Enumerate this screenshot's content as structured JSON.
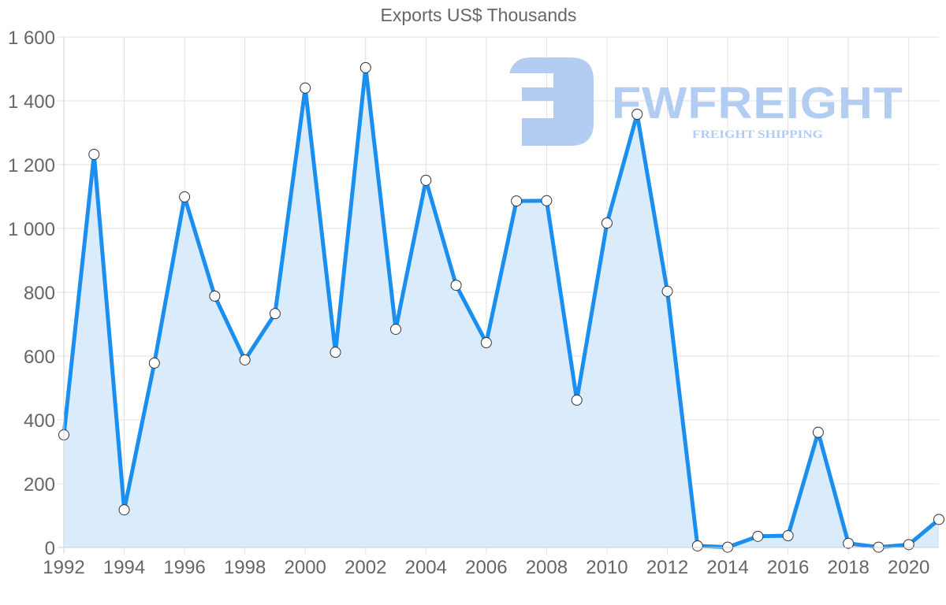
{
  "chart_data": {
    "type": "area",
    "title": "Exports US$ Thousands",
    "xlabel": "",
    "ylabel": "",
    "x": [
      1992,
      1993,
      1994,
      1995,
      1996,
      1997,
      1998,
      1999,
      2000,
      2001,
      2002,
      2003,
      2004,
      2005,
      2006,
      2007,
      2008,
      2009,
      2010,
      2011,
      2012,
      2013,
      2014,
      2015,
      2016,
      2017,
      2018,
      2019,
      2020,
      2021
    ],
    "series": [
      {
        "name": "Exports US$ Thousands",
        "values": [
          353,
          1232,
          118,
          578,
          1099,
          788,
          588,
          733,
          1440,
          612,
          1504,
          684,
          1151,
          822,
          642,
          1086,
          1087,
          462,
          1017,
          1358,
          803,
          5,
          1,
          35,
          37,
          361,
          13,
          1,
          9,
          88
        ]
      }
    ],
    "ylim": [
      0,
      1600
    ],
    "xlim": [
      1992,
      2021
    ],
    "y_ticks": [
      "0",
      "200",
      "400",
      "600",
      "800",
      "1 000",
      "1 200",
      "1 400",
      "1 600"
    ],
    "y_tick_values": [
      0,
      200,
      400,
      600,
      800,
      1000,
      1200,
      1400,
      1600
    ],
    "x_ticks": [
      "1992",
      "1994",
      "1996",
      "1998",
      "2000",
      "2002",
      "2004",
      "2006",
      "2008",
      "2010",
      "2012",
      "2014",
      "2016",
      "2018",
      "2020"
    ],
    "x_tick_values": [
      1992,
      1994,
      1996,
      1998,
      2000,
      2002,
      2004,
      2006,
      2008,
      2010,
      2012,
      2014,
      2016,
      2018,
      2020
    ],
    "grid": true,
    "legend": null,
    "colors": {
      "line": "#1a8ff0",
      "fill": "#d8ebfc",
      "marker_fill": "#ffffff",
      "marker_stroke": "#333333"
    }
  },
  "watermark": {
    "brand": "FWFREIGHT",
    "tagline": "FREIGHT SHIPPING",
    "color": "#b3ccf2"
  }
}
